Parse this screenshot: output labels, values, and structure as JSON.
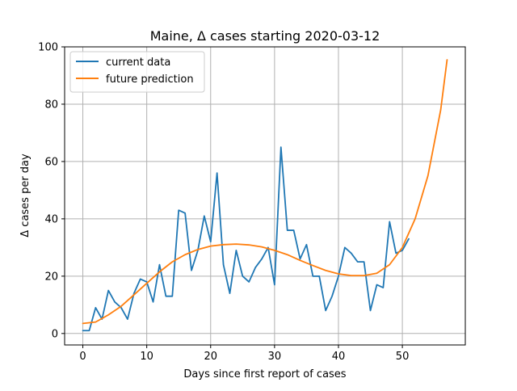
{
  "chart_data": {
    "type": "line",
    "title": "Maine, Δ cases starting 2020-03-12",
    "xlabel": "Days since first report of cases",
    "ylabel": "Δ cases per day",
    "xlim": [
      -2.85,
      59.85
    ],
    "ylim": [
      -4,
      100
    ],
    "xticks": [
      0,
      10,
      20,
      30,
      40,
      50
    ],
    "yticks": [
      0,
      20,
      40,
      60,
      80,
      100
    ],
    "grid": true,
    "legend_position": "top-left",
    "series": [
      {
        "name": "current data",
        "color": "#1f77b4",
        "x": [
          0,
          1,
          2,
          3,
          4,
          5,
          6,
          7,
          8,
          9,
          10,
          11,
          12,
          13,
          14,
          15,
          16,
          17,
          18,
          19,
          20,
          21,
          22,
          23,
          24,
          25,
          26,
          27,
          28,
          29,
          30,
          31,
          32,
          33,
          34,
          35,
          36,
          37,
          38,
          39,
          40,
          41,
          42,
          43,
          44,
          45,
          46,
          47,
          48,
          49,
          50,
          51
        ],
        "y": [
          1,
          1,
          9,
          5,
          15,
          11,
          9,
          5,
          14,
          19,
          18,
          11,
          24,
          13,
          13,
          43,
          42,
          22,
          29,
          41,
          32,
          56,
          24,
          14,
          29,
          20,
          18,
          23,
          26,
          30,
          17,
          65,
          36,
          36,
          26,
          31,
          20,
          20,
          8,
          13,
          20,
          30,
          28,
          25,
          25,
          8,
          17,
          16,
          39,
          28,
          29,
          33
        ]
      },
      {
        "name": "future prediction",
        "color": "#ff7f0e",
        "x": [
          0,
          2,
          4,
          6,
          8,
          10,
          12,
          14,
          16,
          18,
          20,
          22,
          24,
          26,
          28,
          30,
          32,
          34,
          36,
          38,
          40,
          42,
          44,
          46,
          48,
          50,
          52,
          54,
          56,
          57
        ],
        "y": [
          3.5,
          4.0,
          6.5,
          9.5,
          13.5,
          17.5,
          21.5,
          25,
          27.5,
          29.3,
          30.5,
          31.0,
          31.2,
          30.9,
          30.2,
          29.0,
          27.5,
          25.5,
          23.7,
          22.0,
          20.8,
          20.2,
          20.2,
          21.0,
          24.0,
          30.0,
          40.0,
          55.0,
          78.0,
          95.5
        ]
      }
    ]
  }
}
